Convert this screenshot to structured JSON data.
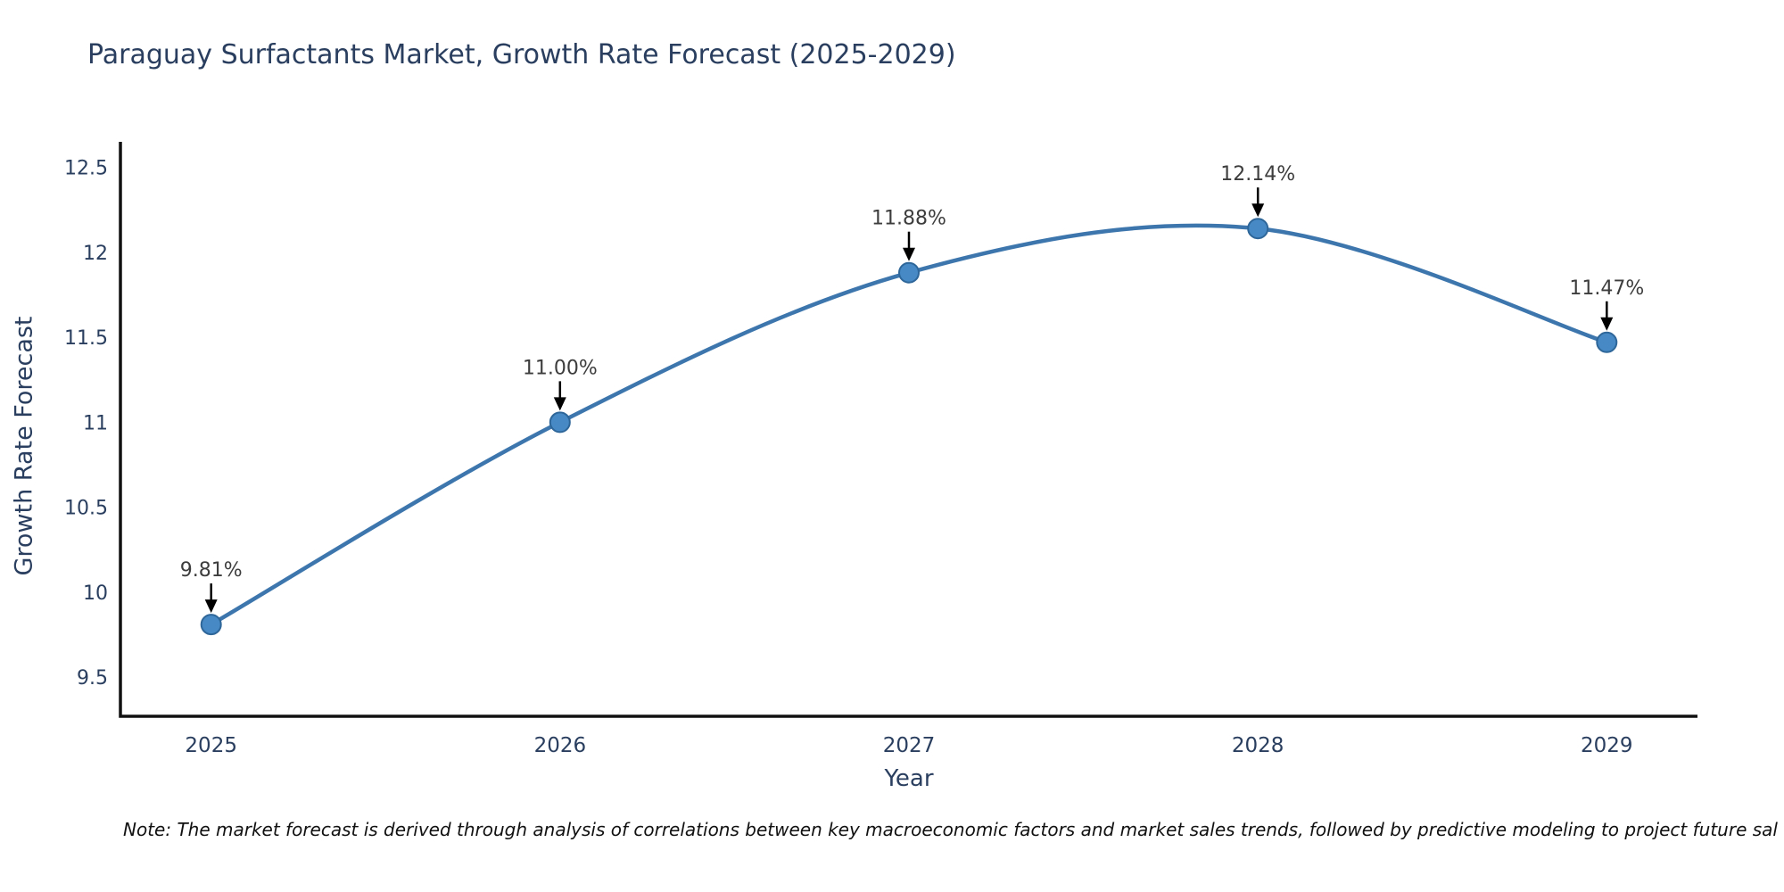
{
  "note": "Note: The market forecast is derived through analysis of correlations between key macroeconomic factors and market sales trends, followed by predictive modeling to project future sal",
  "chart_data": {
    "type": "line",
    "title": "Paraguay Surfactants Market, Growth Rate Forecast (2025-2029)",
    "xlabel": "Year",
    "ylabel": "Growth Rate Forecast",
    "x": [
      2025,
      2026,
      2027,
      2028,
      2029
    ],
    "y": [
      9.81,
      11.0,
      11.88,
      12.14,
      11.47
    ],
    "point_labels": [
      "9.81%",
      "11.00%",
      "11.88%",
      "12.14%",
      "11.47%"
    ],
    "x_ticks": [
      2025,
      2026,
      2027,
      2028,
      2029
    ],
    "y_ticks": [
      12.5,
      12,
      11.5,
      11,
      10.5,
      10,
      9.5
    ],
    "xlim": [
      2024.74,
      2029.26
    ],
    "ylim": [
      9.27,
      12.65
    ],
    "grid": false,
    "legend": "none",
    "line_shape": "spline",
    "colors": {
      "line": "#3d76ad",
      "marker_fill": "#4689c4",
      "marker_edge": "#2e6699",
      "axis_line": "#111111",
      "tick_text": "#2a3f5f",
      "title_text": "#2a3f5f",
      "annotation_text": "#3d3d3d",
      "arrow": "#000000",
      "background": "#ffffff"
    }
  }
}
